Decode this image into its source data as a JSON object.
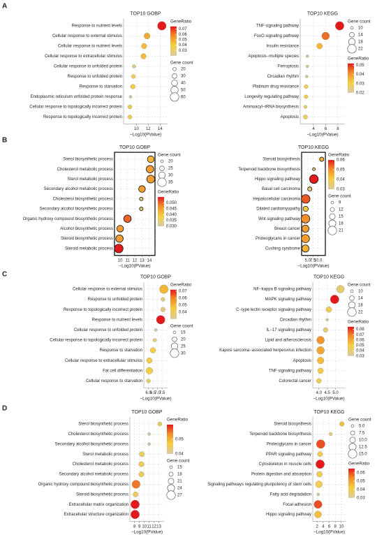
{
  "chart_data": [
    {
      "type": "scatter",
      "panel": "A",
      "title": "TOP10 GOBP",
      "xlabel": "−Log10(PValue)",
      "grid": true,
      "frame": false,
      "legend_first": "color",
      "categories": [
        "Response to nutrient levels",
        "Cellular response to external stimulus",
        "Cellular response to nutrient levels",
        "Cellular response to extracellular stimulus",
        "Cellular response to unfolded protein",
        "Response to unfolded protein",
        "Response to starvation",
        "Endoplasmic reticulum unfolded protein response",
        "Cellular response to topologically incorrect protein",
        "Response to topologically incorrect protein"
      ],
      "values": [
        14.3,
        11.8,
        11.3,
        11.2,
        9.6,
        9.5,
        9.4,
        9.0,
        8.9,
        8.9
      ],
      "sizes": [
        60,
        40,
        35,
        35,
        20,
        25,
        30,
        15,
        25,
        25
      ],
      "ratios": [
        0.075,
        0.05,
        0.045,
        0.045,
        0.03,
        0.035,
        0.04,
        0.02,
        0.035,
        0.035
      ],
      "xlim": [
        8.3,
        14.8
      ],
      "xticks": [
        10,
        12,
        14
      ],
      "size_legend": {
        "title": "Gene count",
        "ticks": [
          20,
          30,
          40,
          50,
          60
        ]
      },
      "color_legend": {
        "title": "GeneRatio",
        "ticks": [
          0.07,
          0.06,
          0.05,
          0.04,
          0.03
        ]
      }
    },
    {
      "type": "scatter",
      "title": "TOP10 KEGG",
      "xlabel": "−Log10(PValue)",
      "grid": true,
      "frame": false,
      "legend_first": "size",
      "categories": [
        "TNF signaling pathway",
        "FoxO signaling pathway",
        "Insulin resistance",
        "Apoptosis−multiple species",
        "Ferroptosis",
        "Circadian rhythm",
        "Platinum drug resistance",
        "Longevity regulating pathway",
        "Aminoacyl−tRNA biosynthesis",
        "Apoptosis"
      ],
      "values": [
        8.3,
        6.0,
        5.0,
        3.0,
        3.0,
        2.9,
        2.8,
        2.8,
        2.7,
        2.7
      ],
      "sizes": [
        22,
        20,
        16,
        10,
        10,
        10,
        12,
        12,
        11,
        13
      ],
      "ratios": [
        0.052,
        0.045,
        0.035,
        0.02,
        0.02,
        0.022,
        0.03,
        0.03,
        0.028,
        0.028
      ],
      "xlim": [
        2.3,
        8.7
      ],
      "xticks": [
        4,
        6,
        8
      ],
      "size_legend": {
        "title": "Gene count",
        "ticks": [
          10,
          14,
          18,
          22
        ]
      },
      "color_legend": {
        "title": "GeneRatio",
        "ticks": [
          0.05,
          0.04,
          0.03,
          0.02
        ]
      }
    },
    {
      "type": "scatter",
      "panel": "B",
      "title": "TOP10 GOBP",
      "xlabel": "−Log10(PValue)",
      "grid": true,
      "frame": true,
      "legend_first": "size",
      "categories": [
        "Sterol biosynthetic process",
        "Cholesterol metabolic process",
        "Sterol metabolic process",
        "Secondary alcohol metabolic process",
        "Cholesterol biosynthetic process",
        "Secondary alcohol biosynthetic process",
        "Organic hydroxy compound biosynthetic process",
        "Alcohol biosynthetic process",
        "Steroid biosynthetic process",
        "Steroid metabolic process"
      ],
      "values": [
        14.2,
        14.1,
        14.2,
        13.0,
        12.9,
        12.9,
        11.0,
        10.0,
        9.9,
        9.8
      ],
      "sizes": [
        30,
        32,
        33,
        30,
        22,
        22,
        32,
        30,
        32,
        35
      ],
      "ratios": [
        0.042,
        0.045,
        0.045,
        0.045,
        0.035,
        0.035,
        0.05,
        0.045,
        0.045,
        0.055
      ],
      "xlim": [
        9.6,
        14.4
      ],
      "xticks": [
        10,
        11,
        12,
        13,
        14
      ],
      "size_legend": {
        "title": "Gene count",
        "ticks": [
          20,
          25,
          30,
          35
        ]
      },
      "color_legend": {
        "title": "GeneRatio",
        "ticks": [
          {
            "value": 0.05,
            "label": "0.050"
          },
          0.045,
          {
            "value": 0.04,
            "label": "0.040"
          },
          0.035,
          {
            "value": 0.03,
            "label": "0.030"
          }
        ]
      }
    },
    {
      "type": "scatter",
      "title": "TOP10 KEGG",
      "xlabel": "−Log10(PValue)",
      "grid": true,
      "frame": true,
      "legend_first": "color",
      "categories": [
        "Steroid biosynthesis",
        "Terpenoid backbone biosynthesis",
        "Hippo signaling pathway",
        "Basal cell carcinoma",
        "Hepatocellular carcinoma",
        "Dilated cardiomyopathy",
        "Wnt signaling pathway",
        "Breast cancer",
        "Proteoglycans in cancer",
        "Cushing syndrome"
      ],
      "values": [
        11.8,
        8.0,
        8.0,
        6.0,
        4.0,
        4.0,
        3.9,
        3.9,
        3.9,
        3.9
      ],
      "sizes": [
        12,
        9,
        21,
        12,
        21,
        14,
        21,
        18,
        20,
        18
      ],
      "ratios": [
        0.045,
        0.035,
        0.06,
        0.035,
        0.055,
        0.04,
        0.05,
        0.048,
        0.048,
        0.045
      ],
      "xlim": [
        3.4,
        12.2
      ],
      "xticks": [
        {
          "value": 5,
          "label": "5.0"
        },
        7.5,
        {
          "value": 10,
          "label": "10.0"
        }
      ],
      "size_legend": {
        "title": "Gene count",
        "ticks": [
          9,
          12,
          15,
          18,
          21
        ]
      },
      "color_legend": {
        "title": "GeneRatio",
        "ticks": [
          0.06,
          0.05,
          0.04,
          0.03
        ]
      }
    },
    {
      "type": "scatter",
      "panel": "C",
      "title": "TOP10 GOBP",
      "xlabel": "−Log10(PValue)",
      "grid": true,
      "frame": false,
      "legend_first": "color",
      "categories": [
        "Cellular response to external stimulus",
        "Response to unfolded protein",
        "Response to topologically incorrect protein",
        "Response to nutrient levels",
        "Cellular response to unfolded protein",
        "Cellular response to topologically incorrect protein",
        "Response to starvation",
        "Cellular response to extracellular stimulus",
        "Fat cell differentiation",
        "Cellular response to starvation"
      ],
      "values": [
        7.7,
        7.6,
        7.6,
        7.35,
        6.8,
        6.7,
        6.5,
        6.1,
        6.1,
        6.0
      ],
      "sizes": [
        30,
        18,
        20,
        30,
        15,
        17,
        22,
        22,
        25,
        18
      ],
      "ratios": [
        0.05,
        0.035,
        0.035,
        0.072,
        0.03,
        0.035,
        0.045,
        0.045,
        0.045,
        0.04
      ],
      "xlim": [
        5.8,
        7.8
      ],
      "xticks": [
        {
          "value": 6,
          "label": "6.0"
        },
        6.5,
        {
          "value": 7,
          "label": "7.0"
        },
        7.5
      ],
      "size_legend": {
        "title": "Gene count",
        "ticks": [
          15,
          20,
          25,
          30
        ]
      },
      "color_legend": {
        "title": "GeneRatio",
        "ticks": [
          0.07,
          0.06,
          0.05,
          0.04
        ]
      }
    },
    {
      "type": "scatter",
      "title": "TOP10 KEGG",
      "xlabel": "−Log10(PValue)",
      "grid": true,
      "frame": false,
      "legend_first": "size",
      "categories": [
        "NF−kappa B signaling pathway",
        "MAPK signaling pathway",
        "C−type lectin receptor signaling pathway",
        "Circadian rhythm",
        "IL−17 signaling pathway",
        "Lipid and atherosclerosis",
        "Kaposi sarcoma−associated herpesvirus infection",
        "Apoptosis",
        "TNF signaling pathway",
        "Colorectal cancer"
      ],
      "values": [
        5.3,
        4.95,
        4.6,
        4.5,
        4.4,
        4.1,
        4.1,
        4.1,
        4.1,
        4.0
      ],
      "sizes": [
        20,
        22,
        16,
        10,
        14,
        20,
        20,
        18,
        16,
        14
      ],
      "ratios": [
        0.04,
        0.085,
        0.045,
        0.03,
        0.04,
        0.065,
        0.06,
        0.055,
        0.05,
        0.045
      ],
      "xlim": [
        3.8,
        5.4
      ],
      "xticks": [
        {
          "value": 4,
          "label": "4.0"
        },
        4.5,
        {
          "value": 5,
          "label": "5.0"
        }
      ],
      "size_legend": {
        "title": "Gene count",
        "ticks": [
          10,
          14,
          18,
          22
        ]
      },
      "color_legend": {
        "title": "GeneRatio",
        "ticks": [
          0.08,
          0.07,
          0.06,
          0.05,
          0.04,
          0.03
        ]
      }
    },
    {
      "type": "scatter",
      "panel": "D",
      "title": "TOP10 GOBP",
      "xlabel": "−Log10(PValue)",
      "grid": true,
      "frame": false,
      "legend_first": "color",
      "categories": [
        "Sterol biosynthetic process",
        "Cholesterol biosynthetic process",
        "Secondary alcohol biosynthetic process",
        "Sterol metabolic process",
        "Cholesterol metabolic process",
        "Secondary alcohol metabolic process",
        "Organic hydroxy compound biosynthetic process",
        "Steroid biosynthetic process",
        "Extracellular matrix organization",
        "Extracellular structure organization"
      ],
      "values": [
        13.2,
        11.0,
        11.0,
        9.5,
        9.4,
        9.4,
        8.3,
        8.2,
        8.1,
        8.1
      ],
      "sizes": [
        18,
        15,
        15,
        20,
        20,
        20,
        26,
        20,
        27,
        27
      ],
      "ratios": [
        0.045,
        0.04,
        0.04,
        0.045,
        0.045,
        0.045,
        0.055,
        0.045,
        0.06,
        0.06
      ],
      "xlim": [
        7.6,
        13.5
      ],
      "xticks": [
        8,
        9,
        10,
        11,
        12,
        13
      ],
      "size_legend": {
        "title": "Gene count",
        "ticks": [
          15,
          18,
          21,
          24,
          27
        ]
      },
      "color_legend": {
        "title": "GeneRatio",
        "ticks": [
          0.05,
          0.04
        ]
      }
    },
    {
      "type": "scatter",
      "title": "TOP10 KEGG",
      "xlabel": "−Log10(PValue)",
      "grid": true,
      "frame": false,
      "legend_first": "size",
      "categories": [
        "Steroid biosynthesis",
        "Terpenoid backbone biosynthesis",
        "Proteoglycans in cancer",
        "PPAR signaling pathway",
        "Cytoskeleton in muscle cells",
        "Protein digestion and absorption",
        "Signaling pathways regulating pluripotency of stem cells",
        "Fatty acid degradation",
        "Focal adhesion",
        "Hippo signaling pathway"
      ],
      "values": [
        10.2,
        6.5,
        3.2,
        3.0,
        3.0,
        2.8,
        2.6,
        2.4,
        2.3,
        2.3
      ],
      "sizes": [
        8,
        6,
        15,
        9,
        15,
        10,
        12,
        5,
        14,
        12
      ],
      "ratios": [
        0.045,
        0.035,
        0.06,
        0.04,
        0.065,
        0.04,
        0.04,
        0.03,
        0.06,
        0.045
      ],
      "xlim": [
        1.5,
        10.5
      ],
      "xticks": [
        2,
        4,
        6,
        8,
        10
      ],
      "size_legend": {
        "title": "Gene count",
        "ticks": [
          {
            "value": 5,
            "label": "5.0"
          },
          7.5,
          {
            "value": 10,
            "label": "10.0"
          },
          12.5,
          {
            "value": 15,
            "label": "15.0"
          }
        ]
      },
      "color_legend": {
        "title": "GeneRatio",
        "ticks": [
          0.06,
          0.05,
          0.04,
          0.03
        ]
      }
    }
  ]
}
